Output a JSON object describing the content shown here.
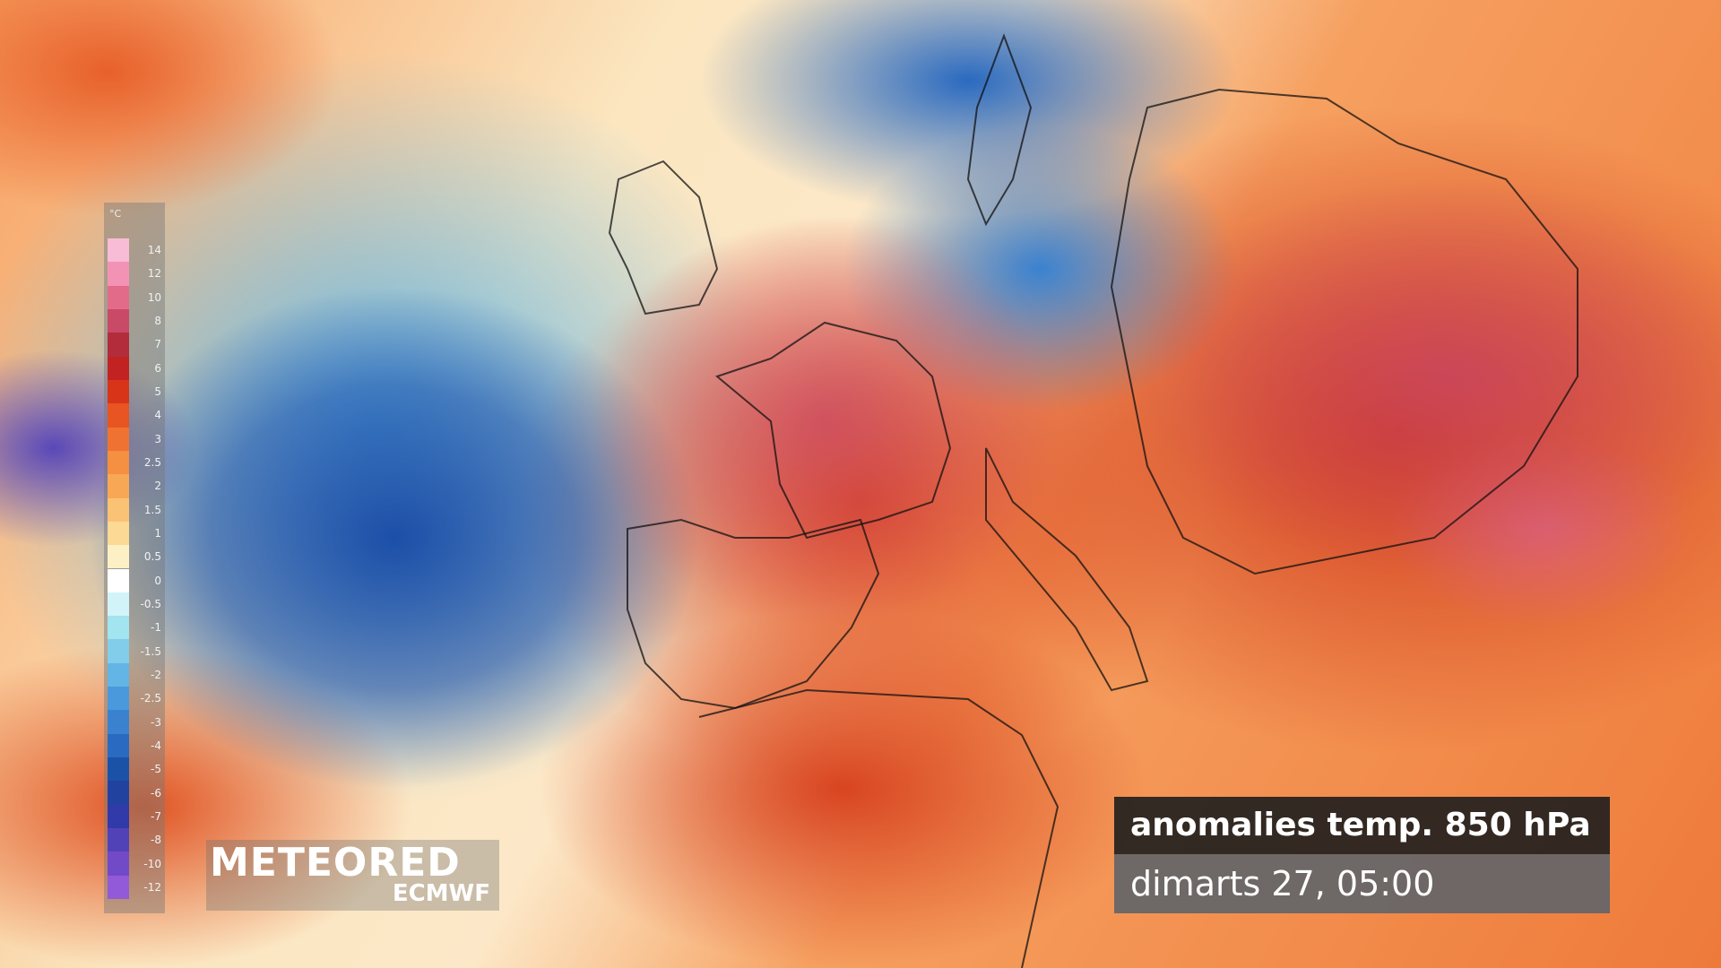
{
  "legend": {
    "unit": "°C",
    "items": [
      {
        "label": "14",
        "color": "#f9bcd6"
      },
      {
        "label": "12",
        "color": "#f293b6"
      },
      {
        "label": "10",
        "color": "#e26b8a"
      },
      {
        "label": "8",
        "color": "#c94a66"
      },
      {
        "label": "7",
        "color": "#b22c3c"
      },
      {
        "label": "6",
        "color": "#c22222"
      },
      {
        "label": "5",
        "color": "#d83418"
      },
      {
        "label": "4",
        "color": "#e85422"
      },
      {
        "label": "3",
        "color": "#f07232"
      },
      {
        "label": "2.5",
        "color": "#f58f42"
      },
      {
        "label": "2",
        "color": "#f8a854"
      },
      {
        "label": "1.5",
        "color": "#fac274"
      },
      {
        "label": "1",
        "color": "#fcd994"
      },
      {
        "label": "0.5",
        "color": "#fdf0c4"
      },
      {
        "label": "0",
        "color": "#ffffff"
      },
      {
        "label": "-0.5",
        "color": "#d2f4f8"
      },
      {
        "label": "-1",
        "color": "#a2e4f0"
      },
      {
        "label": "-1.5",
        "color": "#82cdea"
      },
      {
        "label": "-2",
        "color": "#62b5e4"
      },
      {
        "label": "-2.5",
        "color": "#4a99dc"
      },
      {
        "label": "-3",
        "color": "#3a82d0"
      },
      {
        "label": "-4",
        "color": "#2a6ac0"
      },
      {
        "label": "-5",
        "color": "#1a52a8"
      },
      {
        "label": "-6",
        "color": "#2242a0"
      },
      {
        "label": "-7",
        "color": "#3239a8"
      },
      {
        "label": "-8",
        "color": "#5242b8"
      },
      {
        "label": "-10",
        "color": "#724ac8"
      },
      {
        "label": "-12",
        "color": "#925ad8"
      }
    ]
  },
  "logo": {
    "brand": "METEORED",
    "partner": "ECMWF"
  },
  "info": {
    "title": "anomalies temp. 850 hPa",
    "date": "dimarts 27, 05:00"
  }
}
